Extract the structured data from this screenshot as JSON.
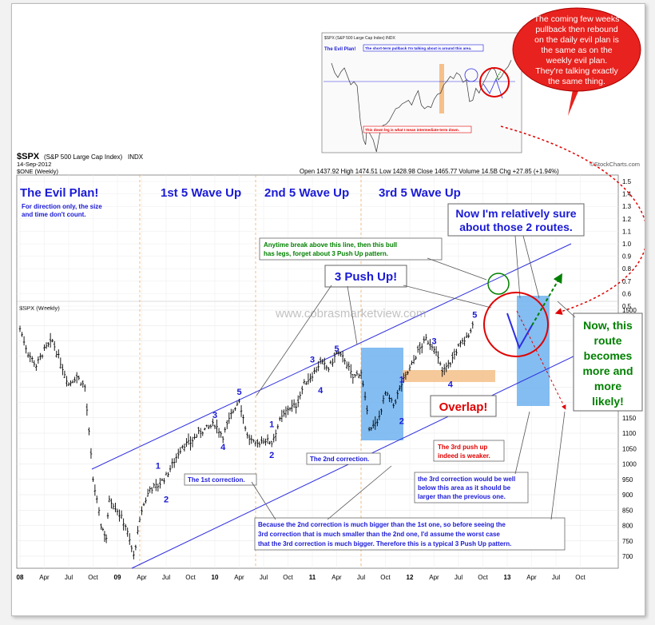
{
  "header": {
    "symbol": "$SPX",
    "name": "(S&P 500 Large Cap Index)",
    "exchange": "INDX",
    "date": "14-Sep-2012",
    "interval": "$ONE (Weekly)",
    "ohlc": "Open 1437.92  High 1474.51  Low 1428.98  Close 1465.77  Volume 14.5B  Chg +27.85 (+1.94%)",
    "source": "©StockCharts.com",
    "series_tag": "$SPX (Weekly)",
    "watermark": "www.cobrasmarketview.com"
  },
  "annotations": {
    "evil_plan": "The Evil Plan!",
    "evil_note1": "For direction only, the size",
    "evil_note2": "and time don't count.",
    "wave1": "1st 5 Wave Up",
    "wave2": "2nd 5 Wave Up",
    "wave3": "3rd 5 Wave Up",
    "routes1": "Now I'm relatively sure",
    "routes2": "about those 2 routes.",
    "anytime1": "Anytime break above this line, then this bull",
    "anytime2": "has legs, forget about 3 Push Up pattern.",
    "push_up": "3 Push Up!",
    "now1": "Now, this",
    "now2": "route",
    "now3": "becomes",
    "now4": "more and",
    "now5": "more",
    "now6": "likely!",
    "overlap": "Overlap!",
    "weaker1": "The 3rd push up",
    "weaker2": "indeed is weaker.",
    "first_corr": "The 1st correction.",
    "second_corr": "The 2nd correction.",
    "third1": "the 3rd correction would be well",
    "third2": "below this area as it should be",
    "third3": "larger than the previous one.",
    "because1": "Because the 2nd correction is much bigger than the 1st one, so before seeing the",
    "because2": "3rd correction that is much smaller than the 2nd one, I'd assume the worst case",
    "because3": "that the 3rd correction is much bigger. Therefore this is a typical 3 Push Up pattern.",
    "bubble1": "The coming few weeks",
    "bubble2": "pullback then rebound",
    "bubble3": "on the daily evil plan is",
    "bubble4": "the same as on the",
    "bubble5": "weekly evil plan.",
    "bubble6": "They're talking exactly",
    "bubble7": "the same thing.",
    "inset_header": "$SPX (S&P 500 Large Cap Index) INDX",
    "inset_plan": "The Evil Plan!",
    "inset_pullback": "The short-term pullback I'm talking about is around this area.",
    "inset_leg": "This down leg is what I mean intermediate-term down."
  },
  "colors": {
    "channel": "#2d2de0",
    "wave_label": "#1a1ad6",
    "green": "#008000",
    "red": "#e00000",
    "blue_zone": "#6fb2ee",
    "orange_zone": "#f5c08a",
    "bubble": "#e8221e",
    "bar": "#000000"
  },
  "chart_data": {
    "type": "ohlc",
    "title": "$SPX (S&P 500 Large Cap Index) INDX",
    "interval": "Weekly",
    "x_tick_labels": [
      "08",
      "Apr",
      "Jul",
      "Oct",
      "09",
      "Apr",
      "Jul",
      "Oct",
      "10",
      "Apr",
      "Jul",
      "Oct",
      "11",
      "Apr",
      "Jul",
      "Oct",
      "12",
      "Apr",
      "Jul",
      "Oct",
      "13",
      "Apr",
      "Jul",
      "Oct"
    ],
    "y_tick_labels": [
      "700",
      "750",
      "800",
      "850",
      "900",
      "950",
      "1000",
      "1050",
      "1100",
      "1150",
      "1200",
      "1250",
      "1300",
      "1350",
      "1400",
      "1450",
      "1500"
    ],
    "y_tick_values": [
      700,
      750,
      800,
      850,
      900,
      950,
      1000,
      1050,
      1100,
      1150,
      1200,
      1250,
      1300,
      1350,
      1400,
      1450,
      1500
    ],
    "oscillator_ticks": [
      "1.5",
      "1.4",
      "1.3",
      "1.2",
      "1.1",
      "1.0",
      "0.9",
      "0.8",
      "0.7",
      "0.6",
      "0.5"
    ],
    "ylim": [
      665,
      1520
    ],
    "series": [
      {
        "name": "$SPX (Weekly)",
        "points": [
          [
            "2008-01",
            1440
          ],
          [
            "2008-02",
            1360
          ],
          [
            "2008-03",
            1320
          ],
          [
            "2008-04",
            1370
          ],
          [
            "2008-05",
            1400
          ],
          [
            "2008-06",
            1330
          ],
          [
            "2008-07",
            1260
          ],
          [
            "2008-08",
            1285
          ],
          [
            "2008-09",
            1250
          ],
          [
            "2008-10",
            950
          ],
          [
            "2008-10-15",
            880
          ],
          [
            "2008-11",
            800
          ],
          [
            "2008-11-20",
            760
          ],
          [
            "2008-12",
            890
          ],
          [
            "2009-01",
            850
          ],
          [
            "2009-02",
            800
          ],
          [
            "2009-03",
            700
          ],
          [
            "2009-04",
            850
          ],
          [
            "2009-05",
            920
          ],
          [
            "2009-06",
            930
          ],
          [
            "2009-07",
            960
          ],
          [
            "2009-08",
            1010
          ],
          [
            "2009-09",
            1060
          ],
          [
            "2009-10",
            1070
          ],
          [
            "2009-11",
            1100
          ],
          [
            "2009-12",
            1115
          ],
          [
            "2010-01",
            1130
          ],
          [
            "2010-02",
            1090
          ],
          [
            "2010-03",
            1160
          ],
          [
            "2010-04",
            1210
          ],
          [
            "2010-05",
            1090
          ],
          [
            "2010-06",
            1060
          ],
          [
            "2010-07",
            1080
          ],
          [
            "2010-08",
            1070
          ],
          [
            "2010-09",
            1140
          ],
          [
            "2010-10",
            1180
          ],
          [
            "2010-11",
            1190
          ],
          [
            "2010-12",
            1260
          ],
          [
            "2011-01",
            1290
          ],
          [
            "2011-02",
            1330
          ],
          [
            "2011-03",
            1310
          ],
          [
            "2011-04",
            1360
          ],
          [
            "2011-05",
            1340
          ],
          [
            "2011-06",
            1280
          ],
          [
            "2011-07",
            1300
          ],
          [
            "2011-08",
            1120
          ],
          [
            "2011-09",
            1130
          ],
          [
            "2011-10",
            1230
          ],
          [
            "2011-11",
            1190
          ],
          [
            "2011-12",
            1260
          ],
          [
            "2012-01",
            1310
          ],
          [
            "2012-02",
            1365
          ],
          [
            "2012-03",
            1405
          ],
          [
            "2012-04",
            1380
          ],
          [
            "2012-05",
            1300
          ],
          [
            "2012-06",
            1330
          ],
          [
            "2012-07",
            1380
          ],
          [
            "2012-08",
            1410
          ],
          [
            "2012-09",
            1465
          ]
        ]
      }
    ],
    "wave_labels": [
      {
        "label": "1",
        "date": "2009-06",
        "value": 985
      },
      {
        "label": "2",
        "date": "2009-07",
        "value": 875
      },
      {
        "label": "3",
        "date": "2010-01",
        "value": 1150
      },
      {
        "label": "4",
        "date": "2010-02",
        "value": 1045
      },
      {
        "label": "5",
        "date": "2010-04",
        "value": 1225
      },
      {
        "label": "1",
        "date": "2010-08",
        "value": 1120
      },
      {
        "label": "2",
        "date": "2010-08",
        "value": 1020
      },
      {
        "label": "3",
        "date": "2011-01",
        "value": 1330
      },
      {
        "label": "4",
        "date": "2011-02",
        "value": 1230
      },
      {
        "label": "5",
        "date": "2011-04",
        "value": 1365
      },
      {
        "label": "1",
        "date": "2011-12",
        "value": 1265
      },
      {
        "label": "2",
        "date": "2011-12",
        "value": 1130
      },
      {
        "label": "3",
        "date": "2012-04",
        "value": 1390
      },
      {
        "label": "4",
        "date": "2012-06",
        "value": 1250
      },
      {
        "label": "5",
        "date": "2012-09",
        "value": 1475
      }
    ],
    "grid": true,
    "legend": "top-left"
  }
}
